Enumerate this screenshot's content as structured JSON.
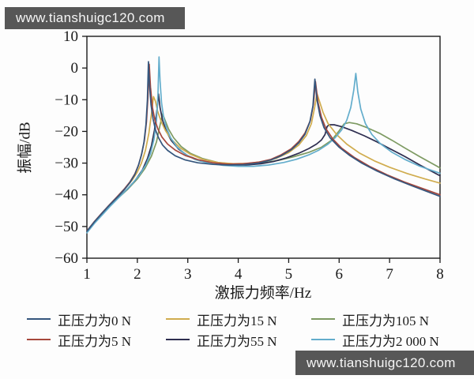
{
  "watermark_top": {
    "text": "www.tianshuigc120.com"
  },
  "watermark_bottom": {
    "text": "www.tianshuigc120.com"
  },
  "chart_data": {
    "type": "line",
    "title": "",
    "xlabel": "激振力频率/Hz",
    "ylabel": "振幅/dB",
    "xlim": [
      1,
      8
    ],
    "ylim": [
      -60,
      10
    ],
    "x_ticks": [
      1,
      2,
      3,
      4,
      5,
      6,
      7,
      8
    ],
    "x_tick_labels": [
      "1",
      "2",
      "3",
      "4",
      "5",
      "6",
      "7",
      "8"
    ],
    "y_ticks": [
      10,
      0,
      -10,
      -20,
      -30,
      -40,
      -50,
      -60
    ],
    "y_tick_labels": [
      "10",
      "0",
      "−10",
      "−20",
      "−30",
      "−40",
      "−50",
      "−60"
    ],
    "grid": false,
    "legend_position": "below-two-rows-three-columns",
    "axis_color": "#1a1a1a",
    "draw_order": [
      2,
      4,
      1,
      5,
      3,
      0
    ],
    "series": [
      {
        "name": "force-0N",
        "label": "正压力为0 N",
        "color": "#35567d",
        "points": [
          [
            1,
            -51.5
          ],
          [
            1.15,
            -48.5
          ],
          [
            1.3,
            -45.8
          ],
          [
            1.45,
            -43.2
          ],
          [
            1.6,
            -40.8
          ],
          [
            1.75,
            -38.2
          ],
          [
            1.85,
            -36.2
          ],
          [
            1.95,
            -33.6
          ],
          [
            2.02,
            -30.8
          ],
          [
            2.08,
            -27.5
          ],
          [
            2.13,
            -23.5
          ],
          [
            2.17,
            -18
          ],
          [
            2.2,
            -10
          ],
          [
            2.22,
            2
          ],
          [
            2.24,
            -5
          ],
          [
            2.27,
            -11.5
          ],
          [
            2.31,
            -16
          ],
          [
            2.36,
            -19.5
          ],
          [
            2.42,
            -22
          ],
          [
            2.5,
            -24.3
          ],
          [
            2.6,
            -26
          ],
          [
            2.75,
            -27.7
          ],
          [
            2.95,
            -29
          ],
          [
            3.2,
            -29.9
          ],
          [
            3.5,
            -30.4
          ],
          [
            3.8,
            -30.6
          ],
          [
            4.1,
            -30.5
          ],
          [
            4.4,
            -30
          ],
          [
            4.65,
            -29
          ],
          [
            4.85,
            -27.7
          ],
          [
            5.05,
            -25.8
          ],
          [
            5.2,
            -23.6
          ],
          [
            5.32,
            -21
          ],
          [
            5.42,
            -17
          ],
          [
            5.48,
            -12
          ],
          [
            5.52,
            -3.5
          ],
          [
            5.56,
            -10
          ],
          [
            5.62,
            -15
          ],
          [
            5.7,
            -18.8
          ],
          [
            5.82,
            -22
          ],
          [
            6.0,
            -25
          ],
          [
            6.2,
            -27.5
          ],
          [
            6.45,
            -30
          ],
          [
            6.75,
            -32.5
          ],
          [
            7.1,
            -35
          ],
          [
            7.45,
            -37.2
          ],
          [
            7.75,
            -39
          ],
          [
            8,
            -40.5
          ]
        ]
      },
      {
        "name": "force-15N",
        "label": "正压力为15 N",
        "color": "#d0ac4e",
        "points": [
          [
            1,
            -51.5
          ],
          [
            1.15,
            -48.5
          ],
          [
            1.3,
            -45.8
          ],
          [
            1.45,
            -43.2
          ],
          [
            1.6,
            -40.8
          ],
          [
            1.75,
            -38.2
          ],
          [
            1.9,
            -35.3
          ],
          [
            2.0,
            -32.8
          ],
          [
            2.08,
            -30
          ],
          [
            2.16,
            -26
          ],
          [
            2.23,
            -20.5
          ],
          [
            2.28,
            -14.5
          ],
          [
            2.32,
            -9
          ],
          [
            2.36,
            -10.5
          ],
          [
            2.4,
            -13.5
          ],
          [
            2.47,
            -16.8
          ],
          [
            2.56,
            -19.8
          ],
          [
            2.68,
            -22.6
          ],
          [
            2.85,
            -25.2
          ],
          [
            3.05,
            -27.2
          ],
          [
            3.3,
            -28.8
          ],
          [
            3.6,
            -29.8
          ],
          [
            3.9,
            -30.2
          ],
          [
            4.2,
            -30.1
          ],
          [
            4.5,
            -29.5
          ],
          [
            4.75,
            -28.5
          ],
          [
            5.0,
            -26.7
          ],
          [
            5.2,
            -24.3
          ],
          [
            5.35,
            -21.3
          ],
          [
            5.45,
            -17.5
          ],
          [
            5.52,
            -12
          ],
          [
            5.56,
            -8
          ],
          [
            5.61,
            -10.5
          ],
          [
            5.68,
            -14
          ],
          [
            5.78,
            -17.5
          ],
          [
            5.95,
            -21
          ],
          [
            6.15,
            -24
          ],
          [
            6.4,
            -26.8
          ],
          [
            6.7,
            -29.3
          ],
          [
            7.0,
            -31.3
          ],
          [
            7.35,
            -33.3
          ],
          [
            7.7,
            -35
          ],
          [
            8,
            -36.3
          ]
        ]
      },
      {
        "name": "force-105N",
        "label": "正压力为105 N",
        "color": "#7d9a62",
        "points": [
          [
            1,
            -51.5
          ],
          [
            1.2,
            -47.8
          ],
          [
            1.4,
            -44.4
          ],
          [
            1.6,
            -41.3
          ],
          [
            1.8,
            -38.4
          ],
          [
            2.0,
            -35
          ],
          [
            2.15,
            -31.7
          ],
          [
            2.28,
            -27.8
          ],
          [
            2.38,
            -23.3
          ],
          [
            2.45,
            -18
          ],
          [
            2.5,
            -14.5
          ],
          [
            2.55,
            -16.5
          ],
          [
            2.62,
            -19.3
          ],
          [
            2.72,
            -22
          ],
          [
            2.87,
            -24.8
          ],
          [
            3.05,
            -26.9
          ],
          [
            3.3,
            -28.6
          ],
          [
            3.6,
            -29.8
          ],
          [
            3.9,
            -30.3
          ],
          [
            4.2,
            -30.3
          ],
          [
            4.5,
            -29.9
          ],
          [
            4.8,
            -29.1
          ],
          [
            5.1,
            -28
          ],
          [
            5.4,
            -26.6
          ],
          [
            5.65,
            -25
          ],
          [
            5.85,
            -22.8
          ],
          [
            6.0,
            -19.8
          ],
          [
            6.1,
            -17.6
          ],
          [
            6.2,
            -17.2
          ],
          [
            6.35,
            -17.6
          ],
          [
            6.55,
            -18.8
          ],
          [
            6.8,
            -20.6
          ],
          [
            7.05,
            -22.8
          ],
          [
            7.3,
            -25.2
          ],
          [
            7.6,
            -28
          ],
          [
            8,
            -31.5
          ]
        ]
      },
      {
        "name": "force-5N",
        "label": "正压力为5 N",
        "color": "#a6473c",
        "points": [
          [
            1,
            -51.4
          ],
          [
            1.15,
            -48.4
          ],
          [
            1.3,
            -45.7
          ],
          [
            1.45,
            -43.1
          ],
          [
            1.6,
            -40.6
          ],
          [
            1.75,
            -38
          ],
          [
            1.85,
            -36
          ],
          [
            1.95,
            -33.4
          ],
          [
            2.03,
            -30.3
          ],
          [
            2.09,
            -26.8
          ],
          [
            2.14,
            -22.8
          ],
          [
            2.18,
            -17
          ],
          [
            2.21,
            -9
          ],
          [
            2.235,
            1.2
          ],
          [
            2.26,
            -6
          ],
          [
            2.3,
            -12.5
          ],
          [
            2.35,
            -16.5
          ],
          [
            2.41,
            -19.3
          ],
          [
            2.49,
            -21.8
          ],
          [
            2.6,
            -24
          ],
          [
            2.75,
            -25.9
          ],
          [
            2.95,
            -27.6
          ],
          [
            3.2,
            -28.9
          ],
          [
            3.5,
            -29.9
          ],
          [
            3.8,
            -30.3
          ],
          [
            4.1,
            -30.2
          ],
          [
            4.4,
            -29.7
          ],
          [
            4.65,
            -28.8
          ],
          [
            4.85,
            -27.4
          ],
          [
            5.05,
            -25.5
          ],
          [
            5.2,
            -23.2
          ],
          [
            5.32,
            -20.6
          ],
          [
            5.43,
            -16.5
          ],
          [
            5.49,
            -11.5
          ],
          [
            5.53,
            -4.3
          ],
          [
            5.58,
            -10.8
          ],
          [
            5.65,
            -15.5
          ],
          [
            5.74,
            -19.2
          ],
          [
            5.88,
            -22.5
          ],
          [
            6.05,
            -25.3
          ],
          [
            6.3,
            -28.2
          ],
          [
            6.6,
            -31
          ],
          [
            6.95,
            -33.7
          ],
          [
            7.3,
            -36
          ],
          [
            7.65,
            -38
          ],
          [
            8,
            -40
          ]
        ]
      },
      {
        "name": "force-55N",
        "label": "正压力为55 N",
        "color": "#2e2e50",
        "points": [
          [
            1,
            -51.5
          ],
          [
            1.2,
            -47.7
          ],
          [
            1.4,
            -44.3
          ],
          [
            1.6,
            -41.2
          ],
          [
            1.8,
            -38.2
          ],
          [
            1.95,
            -35.6
          ],
          [
            2.1,
            -32.2
          ],
          [
            2.2,
            -28.6
          ],
          [
            2.28,
            -24.5
          ],
          [
            2.34,
            -19.5
          ],
          [
            2.39,
            -13
          ],
          [
            2.42,
            -8.2
          ],
          [
            2.45,
            -12.5
          ],
          [
            2.5,
            -16.5
          ],
          [
            2.57,
            -19.8
          ],
          [
            2.67,
            -22.8
          ],
          [
            2.82,
            -25.6
          ],
          [
            3.0,
            -27.7
          ],
          [
            3.25,
            -29.3
          ],
          [
            3.55,
            -30.2
          ],
          [
            3.85,
            -30.6
          ],
          [
            4.15,
            -30.6
          ],
          [
            4.45,
            -30.2
          ],
          [
            4.7,
            -29.5
          ],
          [
            4.95,
            -28.4
          ],
          [
            5.2,
            -26.9
          ],
          [
            5.4,
            -25.4
          ],
          [
            5.55,
            -24
          ],
          [
            5.65,
            -22.7
          ],
          [
            5.72,
            -21
          ],
          [
            5.76,
            -18.5
          ],
          [
            5.8,
            -17.9
          ],
          [
            5.9,
            -17.9
          ],
          [
            6.05,
            -18.5
          ],
          [
            6.25,
            -19.7
          ],
          [
            6.5,
            -21.4
          ],
          [
            6.75,
            -23.3
          ],
          [
            7.0,
            -25.4
          ],
          [
            7.3,
            -27.9
          ],
          [
            7.6,
            -30.6
          ],
          [
            8,
            -34
          ]
        ]
      },
      {
        "name": "force-2000N",
        "label": "正压力为2 000 N",
        "color": "#63adcc",
        "points": [
          [
            1,
            -52
          ],
          [
            1.15,
            -49
          ],
          [
            1.3,
            -46.4
          ],
          [
            1.45,
            -43.8
          ],
          [
            1.6,
            -41.4
          ],
          [
            1.75,
            -39
          ],
          [
            1.9,
            -36.5
          ],
          [
            2.05,
            -33.6
          ],
          [
            2.17,
            -30.5
          ],
          [
            2.26,
            -27
          ],
          [
            2.33,
            -22.5
          ],
          [
            2.38,
            -16.5
          ],
          [
            2.41,
            -8
          ],
          [
            2.43,
            3.5
          ],
          [
            2.45,
            -4
          ],
          [
            2.48,
            -11
          ],
          [
            2.52,
            -15.5
          ],
          [
            2.58,
            -19
          ],
          [
            2.66,
            -22
          ],
          [
            2.78,
            -24.8
          ],
          [
            2.95,
            -27.2
          ],
          [
            3.15,
            -28.9
          ],
          [
            3.4,
            -30
          ],
          [
            3.7,
            -30.7
          ],
          [
            4.0,
            -31
          ],
          [
            4.3,
            -31
          ],
          [
            4.6,
            -30.6
          ],
          [
            4.9,
            -29.8
          ],
          [
            5.15,
            -28.8
          ],
          [
            5.4,
            -27.4
          ],
          [
            5.6,
            -25.9
          ],
          [
            5.78,
            -24
          ],
          [
            5.92,
            -22
          ],
          [
            6.05,
            -19.5
          ],
          [
            6.15,
            -16.5
          ],
          [
            6.23,
            -12.5
          ],
          [
            6.29,
            -7
          ],
          [
            6.33,
            -1.7
          ],
          [
            6.37,
            -7.5
          ],
          [
            6.43,
            -13
          ],
          [
            6.52,
            -17.5
          ],
          [
            6.65,
            -21
          ],
          [
            6.82,
            -23.9
          ],
          [
            7.05,
            -26.6
          ],
          [
            7.3,
            -28.8
          ],
          [
            7.6,
            -31
          ],
          [
            8,
            -33.2
          ]
        ]
      }
    ]
  }
}
